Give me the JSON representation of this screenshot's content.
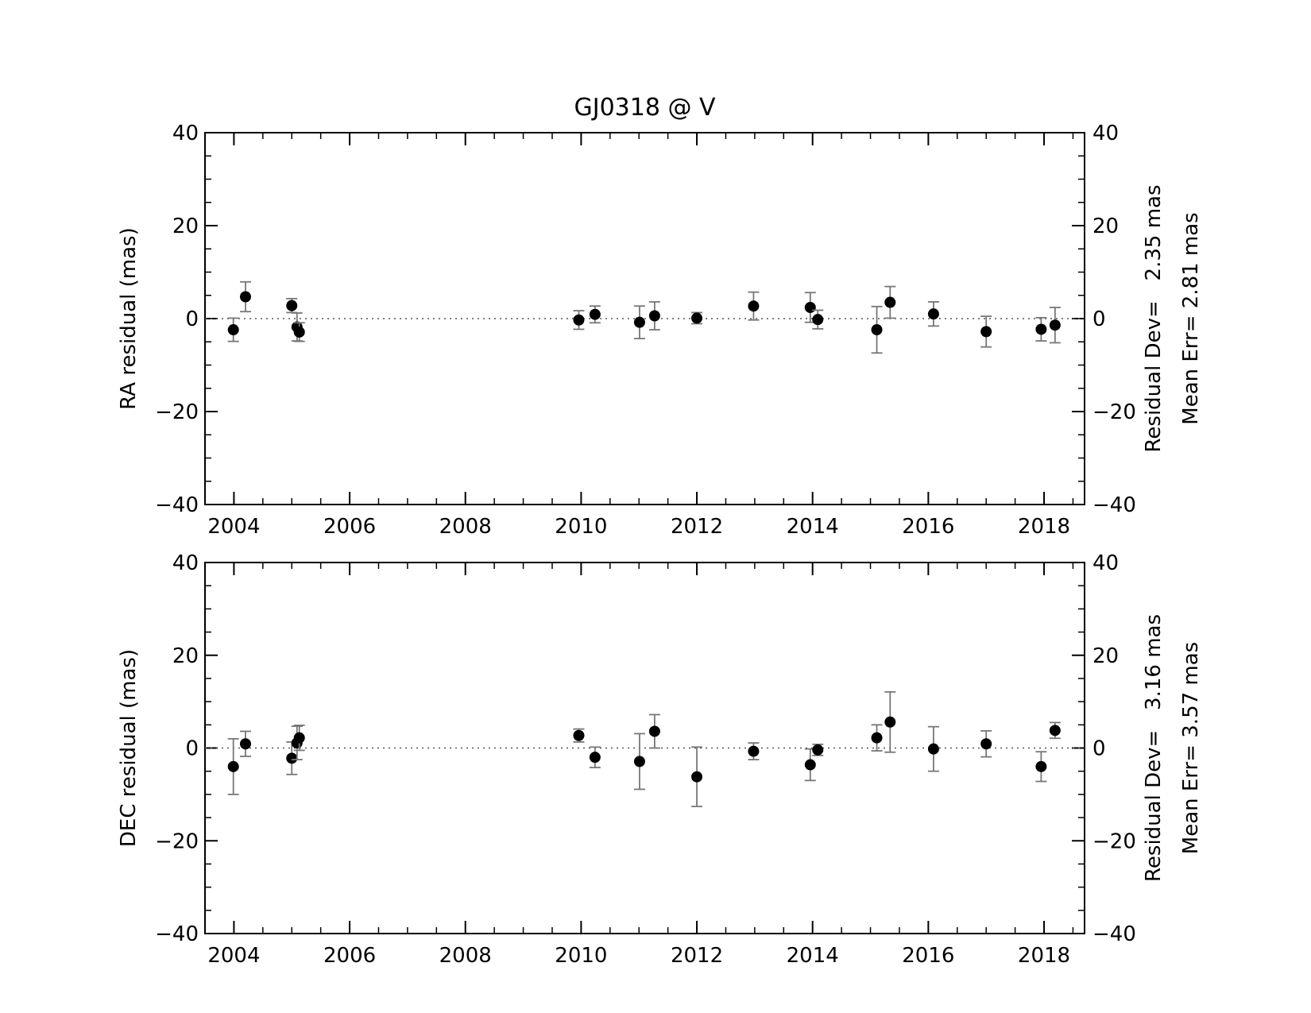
{
  "chart_data": [
    {
      "type": "scatter",
      "title": "GJ0318 @ V",
      "y_label": "RA residual (mas)",
      "annotations": [
        "Residual Dev=   2.35 mas",
        "Mean Err= 2.81 mas"
      ],
      "x": [
        2003.99,
        2004.2,
        2005.0,
        2005.09,
        2005.13,
        2009.96,
        2010.24,
        2011.01,
        2011.27,
        2012.0,
        2012.98,
        2013.96,
        2014.09,
        2015.11,
        2015.34,
        2016.09,
        2017.0,
        2017.95,
        2018.19
      ],
      "series": [
        {
          "color": "#000000",
          "error_color": "#777777",
          "values": [
            -2.4,
            4.7,
            2.8,
            -1.8,
            -2.9,
            -0.3,
            0.9,
            -0.8,
            0.6,
            0.1,
            2.7,
            2.4,
            -0.2,
            -2.4,
            3.5,
            1.0,
            -2.8,
            -2.3,
            -1.4
          ],
          "errors": [
            2.5,
            3.2,
            1.5,
            3.0,
            2.0,
            2.0,
            1.8,
            3.5,
            3.0,
            1.2,
            3.0,
            3.2,
            2.0,
            5.0,
            3.4,
            2.6,
            3.3,
            2.5,
            3.8
          ]
        }
      ],
      "xlim": [
        2003.5,
        2018.7
      ],
      "xticks": [
        2004,
        2006,
        2008,
        2010,
        2012,
        2014,
        2016,
        2018
      ],
      "ylim": [
        -40,
        40
      ],
      "yticks": [
        {
          "value": -40,
          "label": "−40"
        },
        {
          "value": -20,
          "label": "−20"
        },
        0,
        20,
        40
      ],
      "minor_ticks": 4,
      "zero_line": "dotted",
      "right_axis": true
    },
    {
      "type": "scatter",
      "y_label": "DEC residual (mas)",
      "annotations": [
        "Residual Dev=   3.16 mas",
        "Mean Err= 3.57 mas"
      ],
      "x": [
        2003.99,
        2004.2,
        2005.0,
        2005.09,
        2005.13,
        2009.96,
        2010.24,
        2011.01,
        2011.27,
        2012.0,
        2012.98,
        2013.96,
        2014.09,
        2015.11,
        2015.34,
        2016.09,
        2017.0,
        2017.95,
        2018.19
      ],
      "series": [
        {
          "color": "#000000",
          "error_color": "#777777",
          "values": [
            -4.0,
            0.9,
            -2.2,
            1.1,
            2.2,
            2.7,
            -2.0,
            -2.9,
            3.6,
            -6.2,
            -0.7,
            -3.6,
            -0.4,
            2.2,
            5.6,
            -0.2,
            0.9,
            -4.0,
            3.8
          ],
          "errors": [
            6.0,
            2.7,
            3.5,
            3.6,
            2.7,
            1.4,
            2.2,
            6.0,
            3.6,
            6.4,
            1.8,
            3.4,
            1.2,
            2.8,
            6.5,
            4.8,
            2.8,
            3.2,
            1.7
          ]
        }
      ],
      "xlim": [
        2003.5,
        2018.7
      ],
      "xticks": [
        2004,
        2006,
        2008,
        2010,
        2012,
        2014,
        2016,
        2018
      ],
      "ylim": [
        -40,
        40
      ],
      "yticks": [
        {
          "value": -40,
          "label": "−40"
        },
        {
          "value": -20,
          "label": "−20"
        },
        0,
        20,
        40
      ],
      "minor_ticks": 4,
      "zero_line": "dotted",
      "right_axis": true
    }
  ]
}
